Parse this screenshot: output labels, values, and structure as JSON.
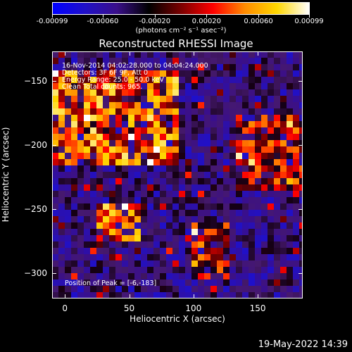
{
  "colorbar": {
    "tick_labels": [
      "-0.00099",
      "-0.00060",
      "-0.00020",
      "0.00020",
      "0.00060",
      "0.00099"
    ],
    "units": "(photons cm⁻² s⁻¹ asec⁻²)",
    "colors": [
      "#0000ff",
      "#2010c8",
      "#3a0f8a",
      "#000000",
      "#7a0000",
      "#ff0000",
      "#ff8c00",
      "#ffd700",
      "#ffffff"
    ]
  },
  "plot": {
    "title": "Reconstructed RHESSI Image",
    "info_lines": [
      "16-Nov-2014 04:02:28.000 to 04:04:24.000",
      "Detectors: 3F 6F 9F, Att 0",
      "Energy Range: 25.0 - 50.0 keV",
      "Clean    Total counts: 965."
    ],
    "peak_text": "Position of Peak = [-6,-183]",
    "xlabel": "Heliocentric X (arcsec)",
    "ylabel": "Heliocentric Y (arcsec)"
  },
  "chart_data": {
    "type": "heatmap",
    "title": "Reconstructed RHESSI Image",
    "xlabel": "Heliocentric X (arcsec)",
    "ylabel": "Heliocentric Y (arcsec)",
    "xlim": [
      -10,
      185
    ],
    "ylim": [
      -320,
      -127
    ],
    "x_ticks": [
      0,
      50,
      100,
      150
    ],
    "y_ticks": [
      -150,
      -200,
      -250,
      -300
    ],
    "colorbar_range": [
      -0.00099,
      0.00099
    ],
    "peak": [
      -6,
      -183
    ],
    "bright_regions": [
      {
        "x": [
          -10,
          90
        ],
        "y": [
          -215,
          -140
        ],
        "level": "high"
      },
      {
        "x": [
          25,
          60
        ],
        "y": [
          -275,
          -245
        ],
        "level": "high"
      },
      {
        "x": [
          100,
          130
        ],
        "y": [
          -305,
          -260
        ],
        "level": "medium"
      },
      {
        "x": [
          135,
          185
        ],
        "y": [
          -235,
          -175
        ],
        "level": "medium"
      }
    ]
  },
  "footer": {
    "timestamp": "19-May-2022 14:39"
  }
}
